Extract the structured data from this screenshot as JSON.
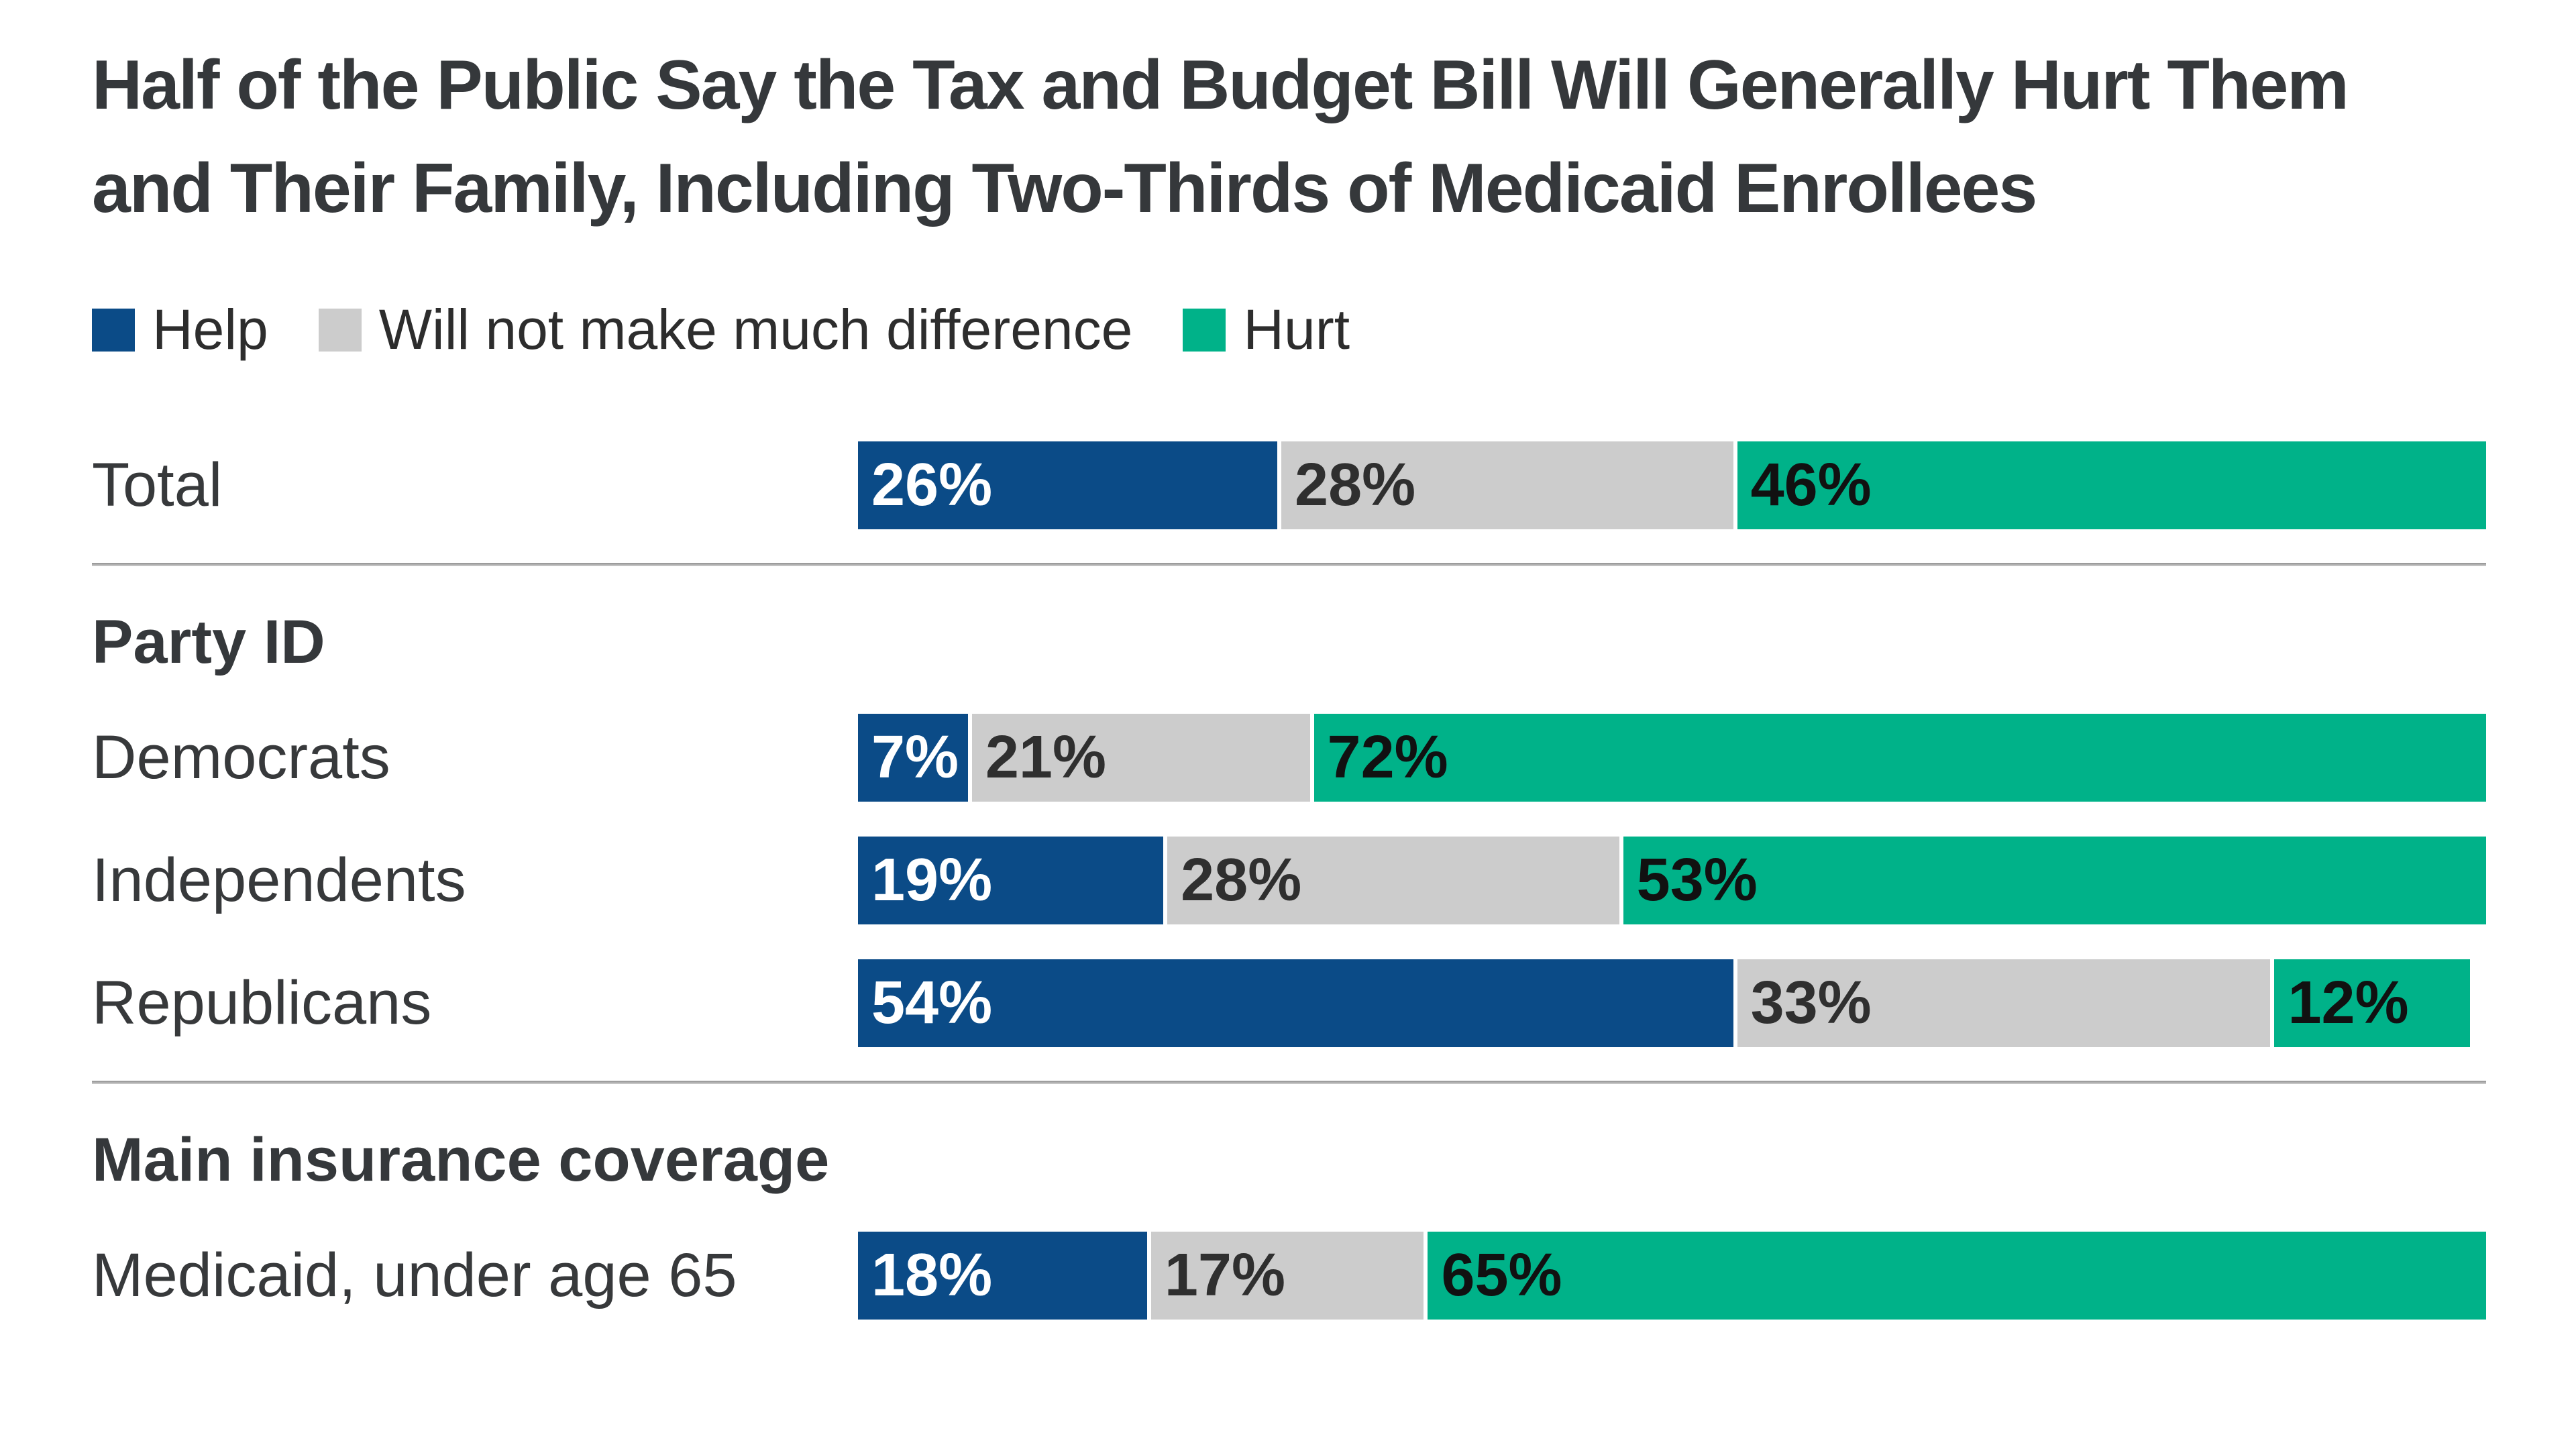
{
  "title": "Half of the Public Say the Tax and Budget Bill Will Generally Hurt Them and Their Family, Including Two-Thirds of Medicaid Enrollees",
  "title_lines": [
    "Half of the Public Say the Tax and Budget Bill Will Generally Hurt Them",
    "and Their Family, Including Two-Thirds of Medicaid Enrollees"
  ],
  "legend": {
    "items": [
      {
        "label": "Help",
        "key": "help"
      },
      {
        "label": "Will not make much difference",
        "key": "neutral"
      },
      {
        "label": "Hurt",
        "key": "hurt"
      }
    ]
  },
  "colors": {
    "help": "#0B4B87",
    "neutral": "#CCCCCC",
    "hurt": "#00B289",
    "value_on_help": "#FFFFFF",
    "value_on_neutral": "#2F2F2F",
    "value_on_hurt": "#111111",
    "divider": "#A6A6A6",
    "title_text": "#35383B",
    "label_text": "#37393B"
  },
  "chart_data": {
    "type": "bar",
    "stacked": true,
    "orientation": "horizontal",
    "unit": "percent",
    "value_suffix": "%",
    "title": "Half of the Public Say the Tax and Budget Bill Will Generally Hurt Them and Their Family, Including Two-Thirds of Medicaid Enrollees",
    "series_names": [
      "Help",
      "Will not make much difference",
      "Hurt"
    ],
    "series_keys": [
      "help",
      "neutral",
      "hurt"
    ],
    "xlim": [
      0,
      100
    ],
    "grid": false,
    "legend_position": "top-left",
    "groups": [
      {
        "header": "",
        "rows": [
          {
            "label": "Total",
            "values": [
              26,
              28,
              46
            ]
          }
        ]
      },
      {
        "header": "Party ID",
        "rows": [
          {
            "label": "Democrats",
            "values": [
              7,
              21,
              72
            ]
          },
          {
            "label": "Independents",
            "values": [
              19,
              28,
              53
            ]
          },
          {
            "label": "Republicans",
            "values": [
              54,
              33,
              12
            ]
          }
        ]
      },
      {
        "header": "Main insurance coverage",
        "rows": [
          {
            "label": "Medicaid, under age 65",
            "values": [
              18,
              17,
              65
            ]
          }
        ]
      }
    ]
  }
}
